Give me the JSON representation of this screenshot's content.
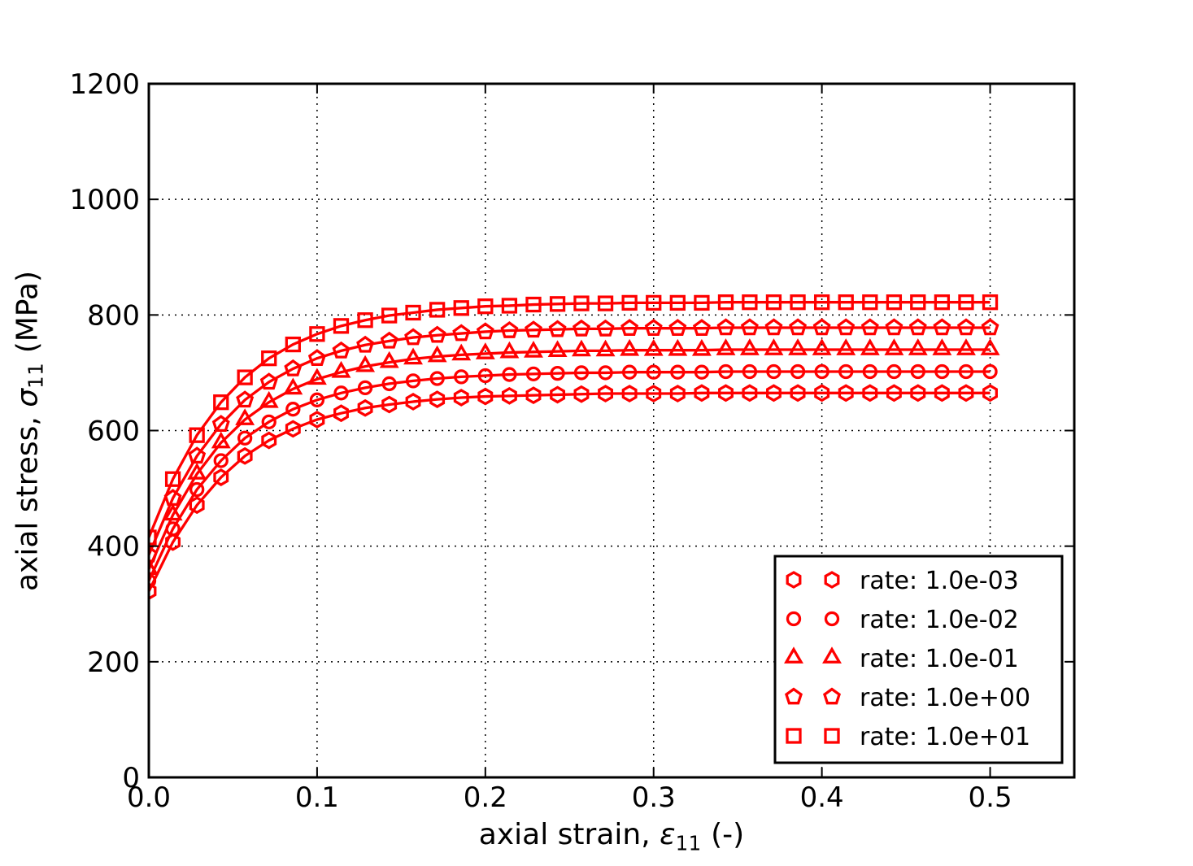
{
  "figure": {
    "background": "#ffffff",
    "series_color": "#ff0000",
    "axis_color": "#000000",
    "grid_color": "#000000",
    "xlabel_parts": {
      "prefix": "axial strain, ",
      "symbol": "ε",
      "subscript": "11",
      "suffix": " (-)"
    },
    "ylabel_parts": {
      "prefix": "axial stress, ",
      "symbol": "σ",
      "subscript": "11",
      "suffix": " (MPa)"
    }
  },
  "chart_data": {
    "type": "line",
    "title": "",
    "xlabel": "axial strain, ε11 (-)",
    "ylabel": "axial stress, σ11 (MPa)",
    "xlim": [
      0.0,
      0.55
    ],
    "ylim": [
      0,
      1200
    ],
    "x_ticks": [
      0.0,
      0.1,
      0.2,
      0.3,
      0.4,
      0.5
    ],
    "x_tick_labels": [
      "0.0",
      "0.1",
      "0.2",
      "0.3",
      "0.4",
      "0.5"
    ],
    "y_ticks": [
      0,
      200,
      400,
      600,
      800,
      1000,
      1200
    ],
    "y_tick_labels": [
      "0",
      "200",
      "400",
      "600",
      "800",
      "1000",
      "1200"
    ],
    "grid": true,
    "grid_style": "dotted",
    "legend_position": "lower right",
    "legend_marker_points": 2,
    "x": [
      0.0,
      0.0143,
      0.0286,
      0.0429,
      0.0571,
      0.0714,
      0.0857,
      0.1,
      0.1143,
      0.1286,
      0.1429,
      0.1571,
      0.1714,
      0.1857,
      0.2,
      0.2143,
      0.2286,
      0.2429,
      0.2571,
      0.2714,
      0.2857,
      0.3,
      0.3143,
      0.3286,
      0.3429,
      0.3571,
      0.3714,
      0.3857,
      0.4,
      0.4143,
      0.4286,
      0.4429,
      0.4571,
      0.4714,
      0.4857,
      0.5
    ],
    "series": [
      {
        "name": "rate: 1.0e-03",
        "marker": "hexagon",
        "values": [
          322,
          407,
          471,
          519,
          556,
          583,
          603,
          619,
          630,
          639,
          645,
          650,
          654,
          657,
          659,
          660,
          661,
          662,
          663,
          664,
          664,
          664,
          664,
          665,
          665,
          665,
          665,
          665,
          665,
          665,
          665,
          665,
          665,
          665,
          665,
          665
        ]
      },
      {
        "name": "rate: 1.0e-02",
        "marker": "circle",
        "values": [
          340,
          430,
          498,
          548,
          587,
          615,
          637,
          653,
          665,
          674,
          681,
          686,
          690,
          693,
          695,
          697,
          698,
          699,
          700,
          700,
          701,
          701,
          701,
          701,
          702,
          702,
          702,
          702,
          702,
          702,
          702,
          702,
          702,
          702,
          702,
          702
        ]
      },
      {
        "name": "rate: 1.0e-01",
        "marker": "triangle-up",
        "values": [
          360,
          454,
          525,
          579,
          619,
          649,
          672,
          689,
          701,
          711,
          718,
          724,
          728,
          731,
          733,
          735,
          736,
          737,
          738,
          738,
          739,
          739,
          739,
          739,
          740,
          740,
          740,
          740,
          740,
          740,
          740,
          740,
          740,
          740,
          740,
          740
        ]
      },
      {
        "name": "rate: 1.0e+00",
        "marker": "pentagon",
        "values": [
          385,
          483,
          556,
          611,
          653,
          684,
          707,
          725,
          738,
          748,
          755,
          761,
          765,
          768,
          771,
          773,
          774,
          775,
          776,
          776,
          777,
          777,
          777,
          777,
          778,
          778,
          778,
          778,
          778,
          778,
          778,
          778,
          778,
          778,
          778,
          778
        ]
      },
      {
        "name": "rate: 1.0e+01",
        "marker": "square",
        "values": [
          415,
          516,
          592,
          649,
          692,
          725,
          749,
          767,
          781,
          791,
          799,
          804,
          809,
          812,
          815,
          816,
          818,
          819,
          820,
          820,
          821,
          821,
          821,
          821,
          822,
          822,
          822,
          822,
          822,
          822,
          822,
          822,
          822,
          822,
          822,
          822
        ]
      }
    ]
  }
}
